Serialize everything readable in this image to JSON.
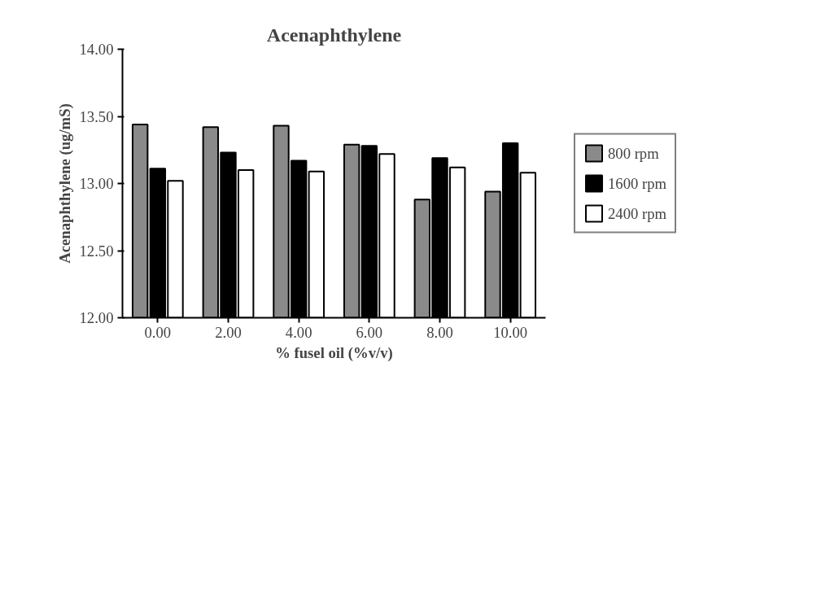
{
  "chart_data": {
    "type": "bar",
    "title": "Acenaphthylene",
    "xlabel": "% fusel oil (%v/v)",
    "ylabel": "Acenaphthylene (ug/mS)",
    "categories": [
      "0.00",
      "2.00",
      "4.00",
      "6.00",
      "8.00",
      "10.00"
    ],
    "series": [
      {
        "name": "800 rpm",
        "color": "#8a8a8a",
        "values": [
          13.44,
          13.42,
          13.43,
          13.29,
          12.88,
          12.94
        ]
      },
      {
        "name": "1600 rpm",
        "color": "#000000",
        "values": [
          13.11,
          13.23,
          13.17,
          13.28,
          13.19,
          13.3
        ]
      },
      {
        "name": "2400 rpm",
        "color": "#ffffff",
        "values": [
          13.02,
          13.1,
          13.09,
          13.22,
          13.12,
          13.08
        ]
      }
    ],
    "ylim": [
      12,
      14
    ],
    "yticks": [
      {
        "value": 12,
        "label": "12.00"
      },
      {
        "value": 12.5,
        "label": "12.50"
      },
      {
        "value": 13,
        "label": "13.00"
      },
      {
        "value": 13.5,
        "label": "13.50"
      },
      {
        "value": 14,
        "label": "14.00"
      }
    ],
    "grid": false,
    "legend": "right"
  }
}
